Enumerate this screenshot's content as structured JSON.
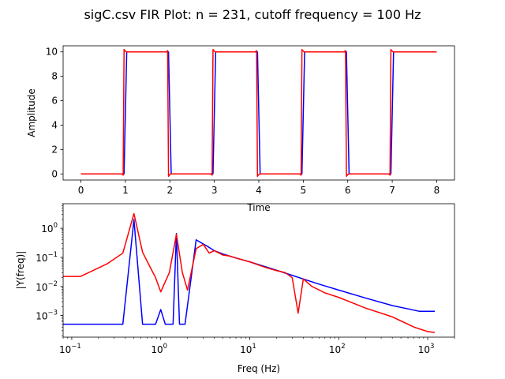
{
  "chart_title": "sigC.csv FIR Plot: n = 231, cutoff frequency = 100 Hz",
  "colors": {
    "original": "#0000ff",
    "filtered": "#ff0000"
  },
  "chart_data": [
    {
      "type": "line",
      "xlabel": "Time",
      "ylabel": "Amplitude",
      "xlim": [
        -0.4,
        8.4
      ],
      "ylim": [
        -0.5,
        10.5
      ],
      "xticks": [
        "0",
        "1",
        "2",
        "3",
        "4",
        "5",
        "6",
        "7",
        "8"
      ],
      "yticks": [
        "0",
        "2",
        "4",
        "6",
        "8",
        "10"
      ],
      "grid": false,
      "series": [
        {
          "color": "#0000ff",
          "x": [
            0,
            0.97,
            1.0,
            1.03,
            1.97,
            2.0,
            2.03,
            2.97,
            3.0,
            3.03,
            3.97,
            4.0,
            4.03,
            4.97,
            5.0,
            5.03,
            5.97,
            6.0,
            6.03,
            6.97,
            7.0,
            7.03,
            8.0
          ],
          "y": [
            0,
            0,
            5,
            10,
            10,
            5,
            0,
            0,
            5,
            10,
            10,
            5,
            0,
            0,
            5,
            10,
            10,
            5,
            0,
            0,
            5,
            10,
            10
          ]
        },
        {
          "color": "#ff0000",
          "x": [
            0,
            0.92,
            0.95,
            0.97,
            0.99,
            1.02,
            1.92,
            1.95,
            1.97,
            1.99,
            2.02,
            2.92,
            2.95,
            2.97,
            2.99,
            3.02,
            3.92,
            3.95,
            3.97,
            3.99,
            4.02,
            4.92,
            4.95,
            4.97,
            4.99,
            5.02,
            5.92,
            5.95,
            5.97,
            5.99,
            6.02,
            6.92,
            6.95,
            6.97,
            6.99,
            7.02,
            8.0
          ],
          "y": [
            0,
            0,
            -0.1,
            10.2,
            10.1,
            10,
            10,
            10.1,
            -0.2,
            -0.1,
            0,
            0,
            -0.1,
            10.2,
            10.1,
            10,
            10,
            10.1,
            -0.2,
            -0.1,
            0,
            0,
            -0.1,
            10.2,
            10.1,
            10,
            10,
            10.1,
            -0.2,
            -0.1,
            0,
            0,
            -0.1,
            10.2,
            10.1,
            10,
            10
          ]
        }
      ]
    },
    {
      "type": "line",
      "xlabel": "Freq (Hz)",
      "ylabel": "|Y(freq)|",
      "xscale": "log",
      "yscale": "log",
      "xlim": [
        0.08,
        2000
      ],
      "ylim": [
        0.00018,
        7
      ],
      "xticks": [
        "10^-1",
        "10^0",
        "10^1",
        "10^2",
        "10^3"
      ],
      "yticks": [
        "10^-3",
        "10^-2",
        "10^-1",
        "10^0"
      ],
      "grid": false,
      "series": [
        {
          "color": "#0000ff",
          "x": [
            0.0625,
            0.375,
            0.5,
            0.625,
            0.875,
            1.0,
            1.125,
            1.375,
            1.5,
            1.625,
            1.875,
            2.5,
            3.0,
            3.5,
            4.0,
            5.0,
            6.0,
            7.0,
            8.0,
            10.0,
            20.0,
            40.0,
            60.0,
            100.0,
            200.0,
            400.0,
            800.0,
            1200.0
          ],
          "y": [
            0.0005,
            0.0005,
            2.0,
            0.0005,
            0.0005,
            0.0016,
            0.0005,
            0.0005,
            0.66,
            0.0005,
            0.0005,
            0.4,
            0.29,
            0.22,
            0.17,
            0.13,
            0.11,
            0.095,
            0.085,
            0.07,
            0.036,
            0.018,
            0.012,
            0.0075,
            0.004,
            0.0022,
            0.0014,
            0.0014
          ]
        },
        {
          "color": "#ff0000",
          "x": [
            0.0625,
            0.125,
            0.25,
            0.375,
            0.5,
            0.625,
            0.75,
            0.875,
            1.0,
            1.25,
            1.5,
            1.75,
            2.0,
            2.5,
            3.0,
            3.5,
            4.0,
            5.0,
            6.0,
            8.0,
            10.0,
            15.0,
            20.0,
            25.0,
            30.0,
            35.0,
            40.0,
            50.0,
            70.0,
            100.0,
            200.0,
            400.0,
            700.0,
            1000.0,
            1200.0
          ],
          "y": [
            0.022,
            0.022,
            0.06,
            0.14,
            3.2,
            0.15,
            0.05,
            0.02,
            0.0065,
            0.03,
            0.62,
            0.03,
            0.0075,
            0.2,
            0.28,
            0.14,
            0.17,
            0.12,
            0.11,
            0.085,
            0.07,
            0.045,
            0.035,
            0.03,
            0.02,
            0.0012,
            0.018,
            0.01,
            0.006,
            0.0042,
            0.0018,
            0.0009,
            0.0004,
            0.00028,
            0.00026
          ]
        }
      ]
    }
  ]
}
